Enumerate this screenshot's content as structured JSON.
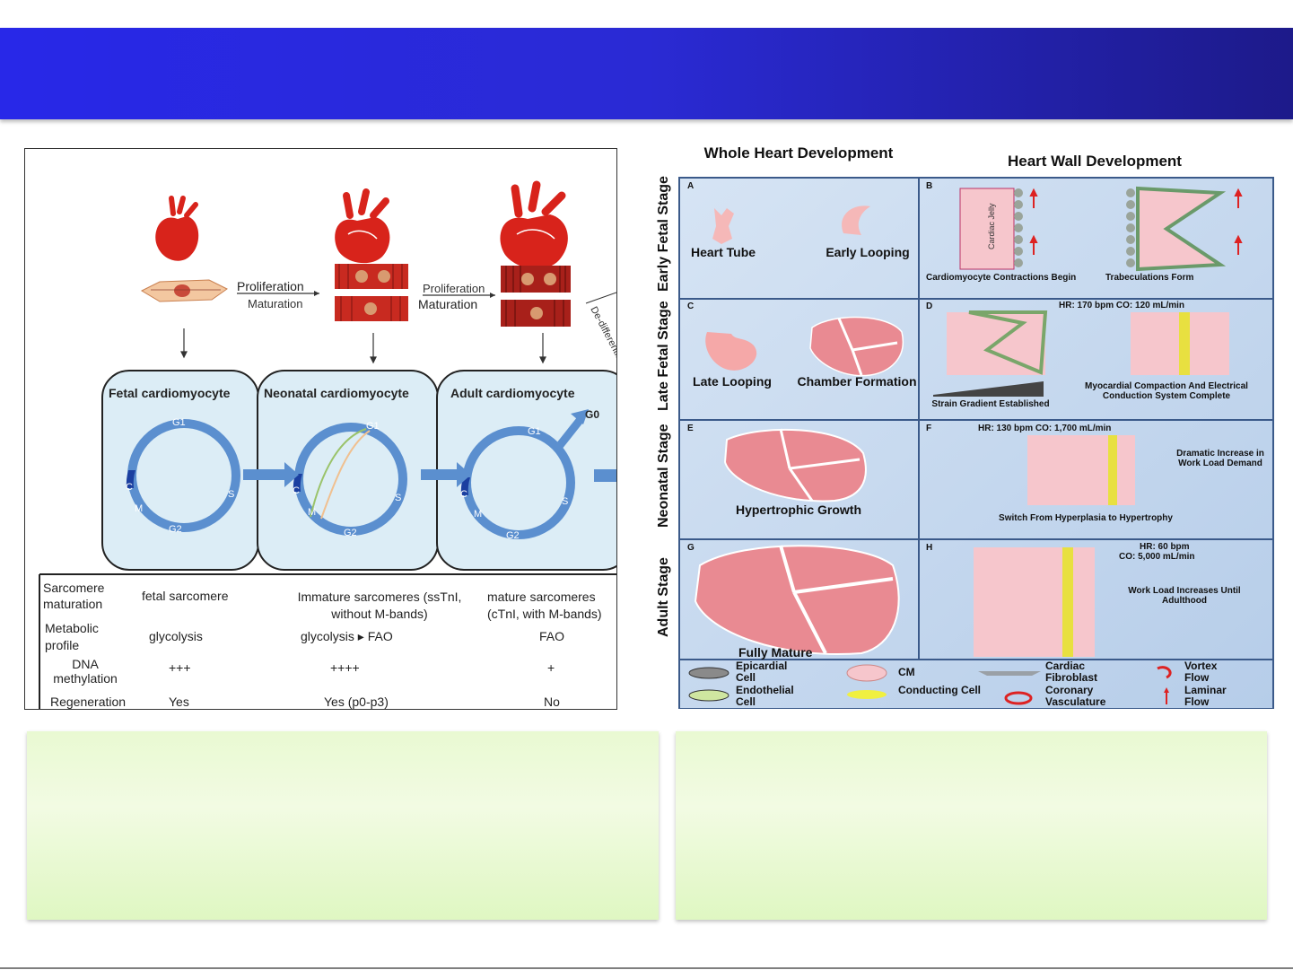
{
  "left_figure": {
    "transition_1": {
      "top": "Proliferation",
      "bottom": "Maturation"
    },
    "transition_2": {
      "top": "Proliferation",
      "bottom": "Maturation"
    },
    "side_label": "De-differentiation",
    "stages": [
      {
        "title": "Fetal cardiomyocyte",
        "phases": {
          "g1": "G1",
          "s": "S",
          "g2": "G2",
          "m": "M",
          "c": "C"
        }
      },
      {
        "title": "Neonatal  cardiomyocyte",
        "phases": {
          "g1": "G1",
          "s": "S",
          "g2": "G2",
          "m": "M",
          "c": "C"
        }
      },
      {
        "title": "Adult cardiomyocyte",
        "phases": {
          "g1": "G1",
          "s": "S",
          "g2": "G2",
          "m": "M",
          "c": "C",
          "g0": "G0"
        }
      }
    ],
    "table": {
      "rows": [
        {
          "label": "Sarcomere maturation",
          "fetal": "fetal sarcomere",
          "neonatal": "Immature sarcomeres (ssTnI, without M-bands)",
          "adult": "mature sarcomeres (cTnI, with M-bands)"
        },
        {
          "label": "Metabolic profile",
          "fetal": "glycolysis",
          "neonatal": "glycolysis ▸ FAO",
          "adult": "FAO"
        },
        {
          "label": "DNA methylation",
          "fetal": "+++",
          "neonatal": "++++",
          "adult": "+"
        },
        {
          "label": "Regeneration",
          "fetal": "Yes",
          "neonatal": "Yes (p0-p3)",
          "adult": "No"
        }
      ]
    }
  },
  "right_figure": {
    "col_headers": [
      "Whole Heart Development",
      "Heart Wall Development"
    ],
    "row_labels": [
      "Early Fetal Stage",
      "Late Fetal Stage",
      "Neonatal Stage",
      "Adult Stage"
    ],
    "panels": {
      "A": {
        "letter": "A",
        "left": "Heart Tube",
        "right": "Early Looping"
      },
      "B": {
        "letter": "B",
        "jelly": "Cardiac Jelly",
        "left": "Cardiomyocyte Contractions Begin",
        "right": "Trabeculations Form"
      },
      "C": {
        "letter": "C",
        "left": "Late Looping",
        "right": "Chamber Formation"
      },
      "D": {
        "letter": "D",
        "stats": "HR: 170 bpm  CO: 120 mL/min",
        "left": "Strain Gradient Established",
        "right": "Myocardial Compaction And Electrical Conduction System Complete"
      },
      "E": {
        "letter": "E",
        "label": "Hypertrophic Growth"
      },
      "F": {
        "letter": "F",
        "stats": "HR: 130 bpm  CO: 1,700 mL/min",
        "right": "Dramatic Increase in Work Load Demand",
        "bottom": "Switch From Hyperplasia to Hypertrophy"
      },
      "G": {
        "letter": "G",
        "label": "Fully Mature"
      },
      "H": {
        "letter": "H",
        "stats1": "HR: 60 bpm",
        "stats2": "CO: 5,000 mL/min",
        "right": "Work Load Increases Until Adulthood"
      }
    },
    "legend": [
      "Epicardial Cell",
      "CM",
      "Cardiac Fibroblast",
      "Vortex Flow",
      "Endothelial Cell",
      "Conducting Cell",
      "Coronary Vasculature",
      "Laminar Flow"
    ]
  }
}
